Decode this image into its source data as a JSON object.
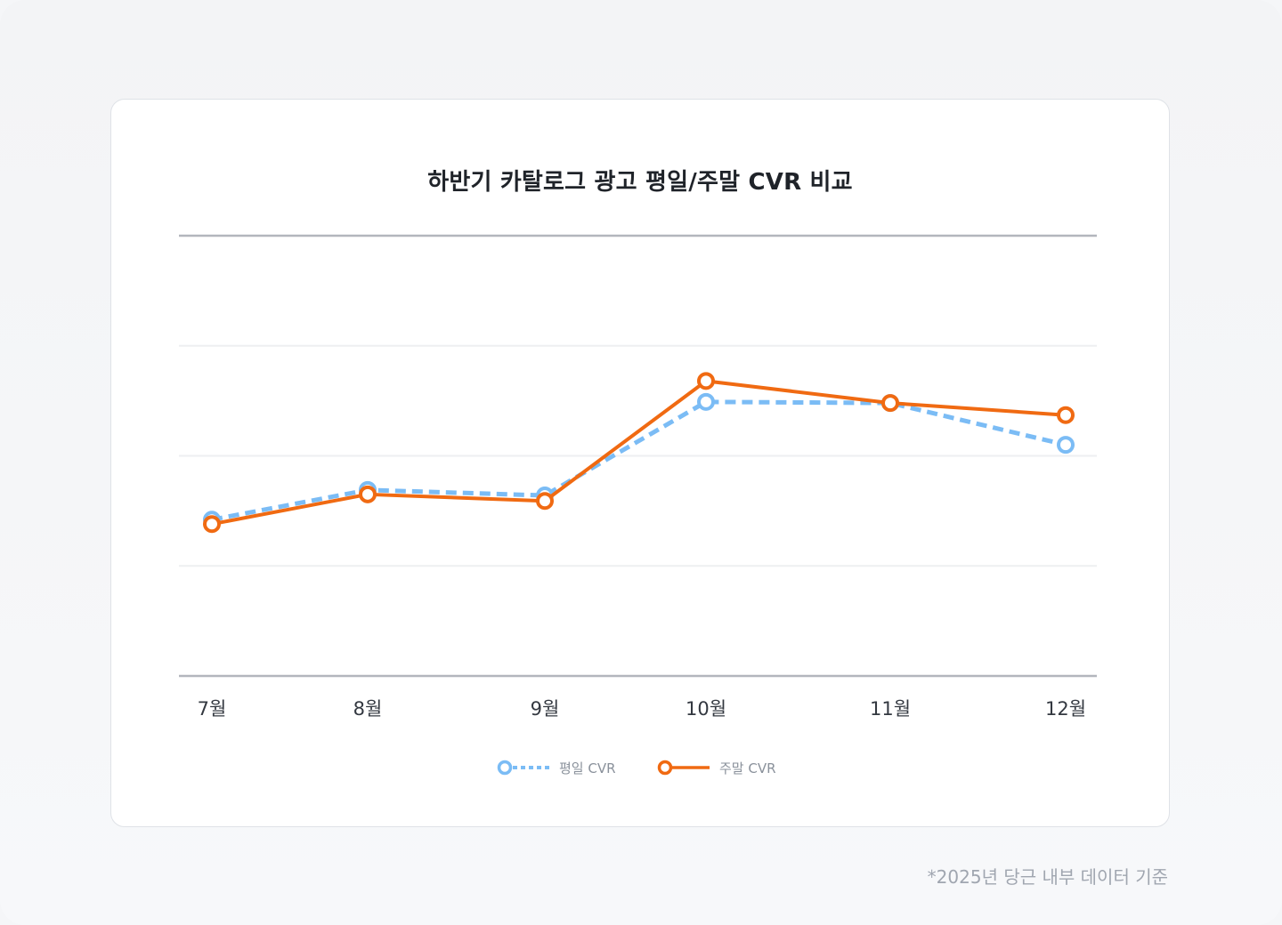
{
  "chart_data": {
    "type": "line",
    "title": "하반기 카탈로그 광고 평일/주말 CVR 비교",
    "categories": [
      "7월",
      "8월",
      "9월",
      "10월",
      "11월",
      "12월"
    ],
    "ylim": [
      0,
      4
    ],
    "grid": true,
    "legend_position": "bottom-center",
    "series": [
      {
        "name": "평일 CVR",
        "values": [
          1.42,
          1.69,
          1.64,
          2.49,
          2.48,
          2.1
        ],
        "color": "#7bbcf5",
        "style": "dashed"
      },
      {
        "name": "주말 CVR",
        "values": [
          1.38,
          1.65,
          1.59,
          2.68,
          2.48,
          2.37
        ],
        "color": "#f06a12",
        "style": "solid"
      }
    ]
  },
  "footnote": "*2025년 당근 내부 데이터 기준"
}
